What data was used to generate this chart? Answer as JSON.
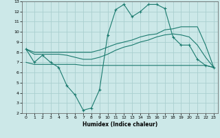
{
  "xlabel": "Humidex (Indice chaleur)",
  "background_color": "#cce8e8",
  "grid_color": "#aacfcf",
  "line_color": "#1a7a6e",
  "xlim": [
    -0.5,
    23.5
  ],
  "ylim": [
    2,
    13
  ],
  "yticks": [
    2,
    3,
    4,
    5,
    6,
    7,
    8,
    9,
    10,
    11,
    12,
    13
  ],
  "xticks": [
    0,
    1,
    2,
    3,
    4,
    5,
    6,
    7,
    8,
    9,
    10,
    11,
    12,
    13,
    14,
    15,
    16,
    17,
    18,
    19,
    20,
    21,
    22,
    23
  ],
  "line1_x": [
    0,
    1,
    2,
    3,
    4,
    5,
    6,
    7,
    8,
    9,
    10,
    11,
    12,
    13,
    14,
    15,
    16,
    17,
    18,
    19,
    20,
    21,
    22,
    23
  ],
  "line1_y": [
    8.3,
    7.0,
    7.7,
    7.0,
    6.5,
    4.7,
    3.8,
    2.3,
    2.5,
    4.3,
    9.7,
    12.2,
    12.7,
    11.5,
    12.0,
    12.7,
    12.7,
    12.3,
    9.5,
    8.7,
    8.7,
    7.3,
    6.7,
    6.5
  ],
  "line2_x": [
    0,
    1,
    2,
    3,
    4,
    5,
    6,
    7,
    8,
    9,
    10,
    11,
    12,
    13,
    14,
    15,
    16,
    17,
    18,
    19,
    20,
    21,
    22,
    23
  ],
  "line2_y": [
    8.3,
    8.0,
    8.0,
    8.0,
    8.0,
    8.0,
    8.0,
    8.0,
    8.0,
    8.2,
    8.5,
    8.8,
    9.0,
    9.2,
    9.5,
    9.7,
    9.8,
    10.2,
    10.3,
    10.5,
    10.5,
    10.5,
    8.7,
    6.5
  ],
  "line3_x": [
    0,
    1,
    2,
    3,
    4,
    5,
    6,
    7,
    8,
    9,
    10,
    11,
    12,
    13,
    14,
    15,
    16,
    17,
    18,
    19,
    20,
    21,
    22,
    23
  ],
  "line3_y": [
    8.3,
    7.8,
    7.8,
    7.8,
    7.8,
    7.7,
    7.5,
    7.3,
    7.3,
    7.5,
    7.8,
    8.2,
    8.5,
    8.7,
    9.0,
    9.2,
    9.5,
    9.7,
    9.8,
    9.7,
    9.5,
    8.7,
    7.5,
    6.5
  ],
  "line4_x": [
    0,
    1,
    2,
    3,
    4,
    5,
    6,
    7,
    8,
    9,
    10,
    11,
    12,
    13,
    14,
    15,
    16,
    17,
    18,
    19,
    20,
    21,
    22,
    23
  ],
  "line4_y": [
    7.0,
    6.8,
    6.8,
    6.8,
    6.8,
    6.8,
    6.8,
    6.7,
    6.7,
    6.7,
    6.7,
    6.7,
    6.7,
    6.7,
    6.7,
    6.7,
    6.7,
    6.7,
    6.7,
    6.7,
    6.7,
    6.7,
    6.7,
    6.5
  ]
}
